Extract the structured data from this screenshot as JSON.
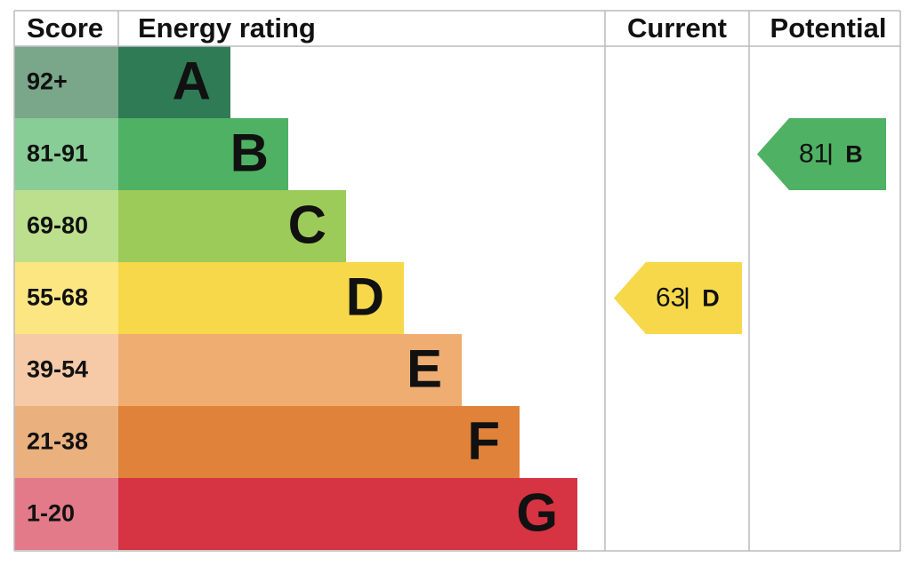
{
  "headers": {
    "score": "Score",
    "rating": "Energy rating",
    "current": "Current",
    "potential": "Potential"
  },
  "bands": [
    {
      "score": "92+",
      "letter": "A",
      "color": "#2f7b55",
      "score_color": "#7aa68a"
    },
    {
      "score": "81-91",
      "letter": "B",
      "color": "#4fb163",
      "score_color": "#88cc96"
    },
    {
      "score": "69-80",
      "letter": "C",
      "color": "#9ccb59",
      "score_color": "#bbdf8d"
    },
    {
      "score": "55-68",
      "letter": "D",
      "color": "#f6d84a",
      "score_color": "#fbe681"
    },
    {
      "score": "39-54",
      "letter": "E",
      "color": "#efad72",
      "score_color": "#f6caa7"
    },
    {
      "score": "21-38",
      "letter": "F",
      "color": "#e0823a",
      "score_color": "#eab07e"
    },
    {
      "score": "1-20",
      "letter": "G",
      "color": "#d63343",
      "score_color": "#e37a8a"
    }
  ],
  "current": {
    "value": 63,
    "letter": "D"
  },
  "potential": {
    "value": 81,
    "letter": "B"
  }
}
